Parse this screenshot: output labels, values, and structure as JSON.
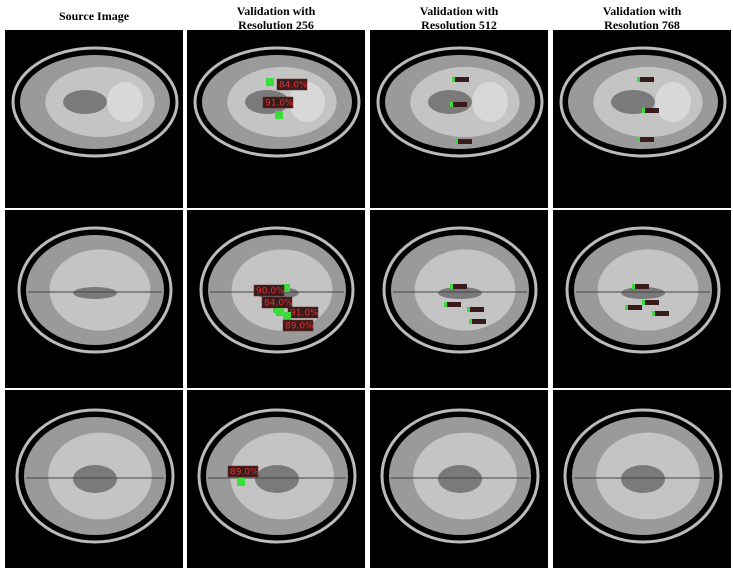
{
  "headers": [
    "Source Image",
    "Validation with Resolution 256",
    "Validation with Resolution 512",
    "Validation with Resolution 768"
  ],
  "rows": [
    {
      "resolution_256_labels": [
        "84.0%",
        "91.0%"
      ]
    },
    {
      "resolution_256_labels": [
        "90.0%",
        "84.0%",
        "91.0%",
        "89.0%"
      ]
    },
    {
      "resolution_256_labels": [
        "89.0%"
      ]
    }
  ]
}
